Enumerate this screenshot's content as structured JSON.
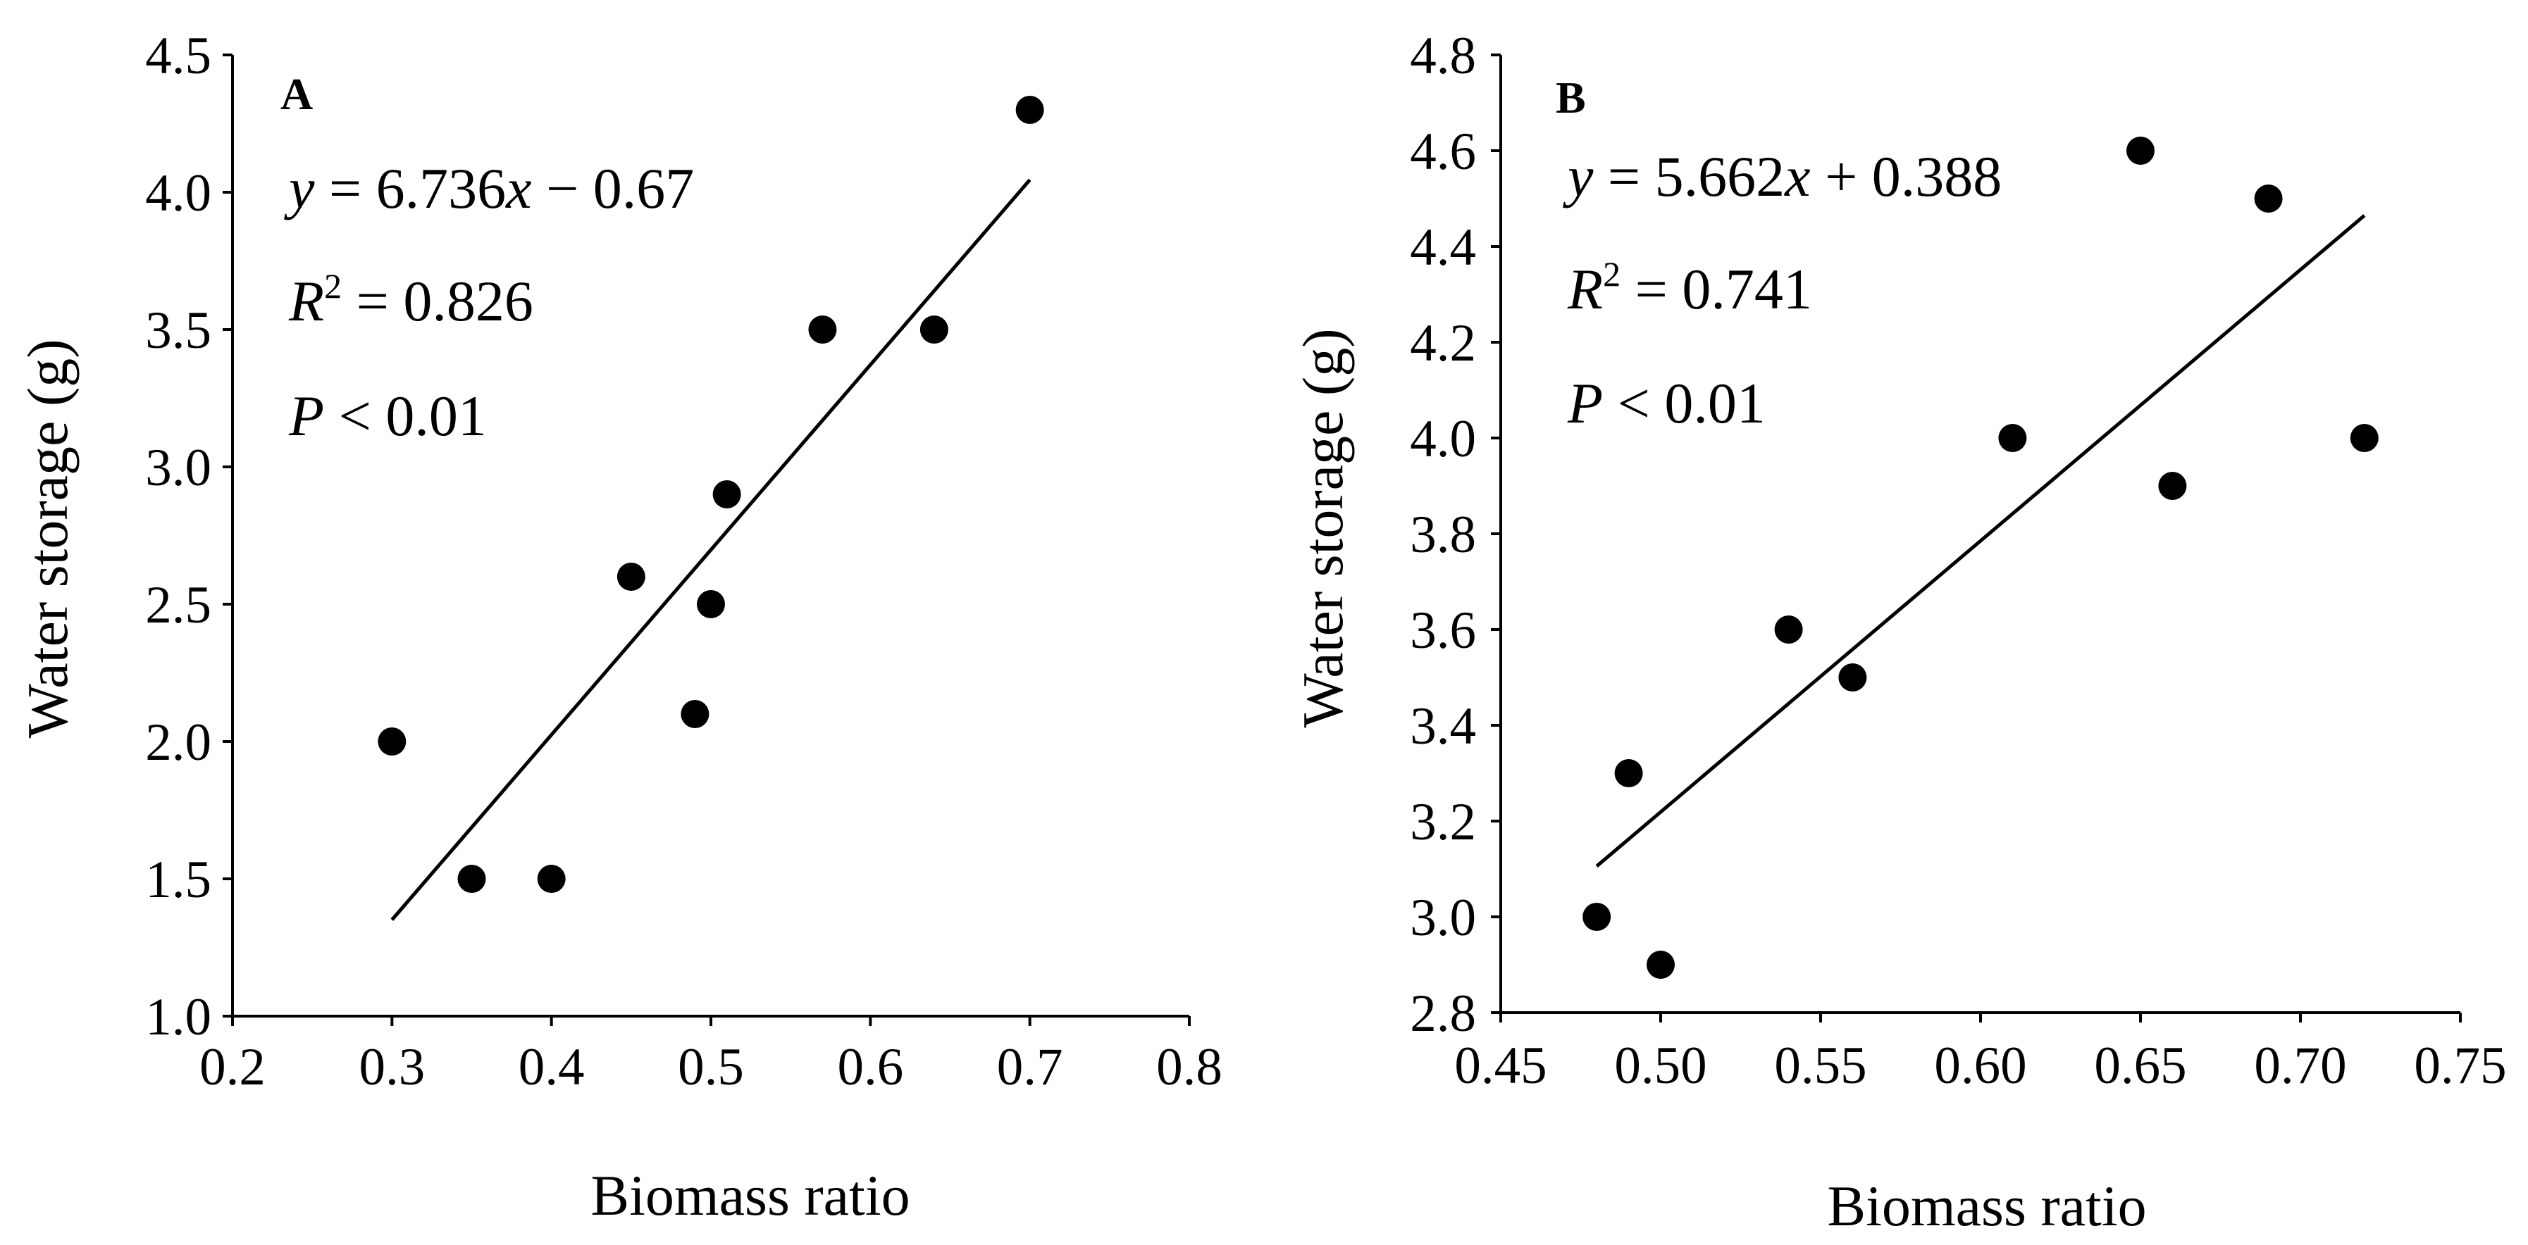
{
  "chart_data": [
    {
      "type": "scatter",
      "panel_label": "A",
      "xlabel": "Biomass ratio",
      "ylabel": "Water storage (g)",
      "xlim": [
        0.2,
        0.8
      ],
      "ylim": [
        1.0,
        4.5
      ],
      "x_ticks": [
        "0.2",
        "0.3",
        "0.4",
        "0.5",
        "0.6",
        "0.7",
        "0.8"
      ],
      "y_ticks": [
        "1.0",
        "1.5",
        "2.0",
        "2.5",
        "3.0",
        "3.5",
        "4.0",
        "4.5"
      ],
      "points": [
        {
          "x": 0.3,
          "y": 2.0
        },
        {
          "x": 0.35,
          "y": 1.5
        },
        {
          "x": 0.4,
          "y": 1.5
        },
        {
          "x": 0.45,
          "y": 2.6
        },
        {
          "x": 0.49,
          "y": 2.1
        },
        {
          "x": 0.5,
          "y": 2.5
        },
        {
          "x": 0.51,
          "y": 2.9
        },
        {
          "x": 0.57,
          "y": 3.5
        },
        {
          "x": 0.64,
          "y": 3.5
        },
        {
          "x": 0.7,
          "y": 4.3
        }
      ],
      "fit": {
        "slope": 6.736,
        "intercept": -0.67,
        "x_range": [
          0.3,
          0.7
        ]
      },
      "annotations": {
        "equation_y": "y",
        "equation_rest": " = 6.736",
        "equation_x": "x",
        "equation_tail": " − 0.67",
        "r2_r": "R",
        "r2_sup": "2",
        "r2_value": " = 0.826",
        "p_p": "P",
        "p_value": " < 0.01"
      }
    },
    {
      "type": "scatter",
      "panel_label": "B",
      "xlabel": "Biomass ratio",
      "ylabel": "Water storage (g)",
      "xlim": [
        0.45,
        0.75
      ],
      "ylim": [
        2.8,
        4.8
      ],
      "x_ticks": [
        "0.45",
        "0.50",
        "0.55",
        "0.60",
        "0.65",
        "0.70",
        "0.75"
      ],
      "y_ticks": [
        "2.8",
        "3.0",
        "3.2",
        "3.4",
        "3.6",
        "3.8",
        "4.0",
        "4.2",
        "4.4",
        "4.6",
        "4.8"
      ],
      "points": [
        {
          "x": 0.48,
          "y": 3.0
        },
        {
          "x": 0.49,
          "y": 3.3
        },
        {
          "x": 0.5,
          "y": 2.9
        },
        {
          "x": 0.54,
          "y": 3.6
        },
        {
          "x": 0.56,
          "y": 3.5
        },
        {
          "x": 0.61,
          "y": 4.0
        },
        {
          "x": 0.65,
          "y": 4.6
        },
        {
          "x": 0.66,
          "y": 3.9
        },
        {
          "x": 0.69,
          "y": 4.5
        },
        {
          "x": 0.72,
          "y": 4.0
        }
      ],
      "fit": {
        "slope": 5.662,
        "intercept": 0.388,
        "x_range": [
          0.48,
          0.72
        ]
      },
      "annotations": {
        "equation_y": "y",
        "equation_rest": " = 5.662",
        "equation_x": "x",
        "equation_tail": " + 0.388",
        "r2_r": "R",
        "r2_sup": "2",
        "r2_value": " = 0.741",
        "p_p": "P",
        "p_value": " < 0.01"
      }
    }
  ]
}
